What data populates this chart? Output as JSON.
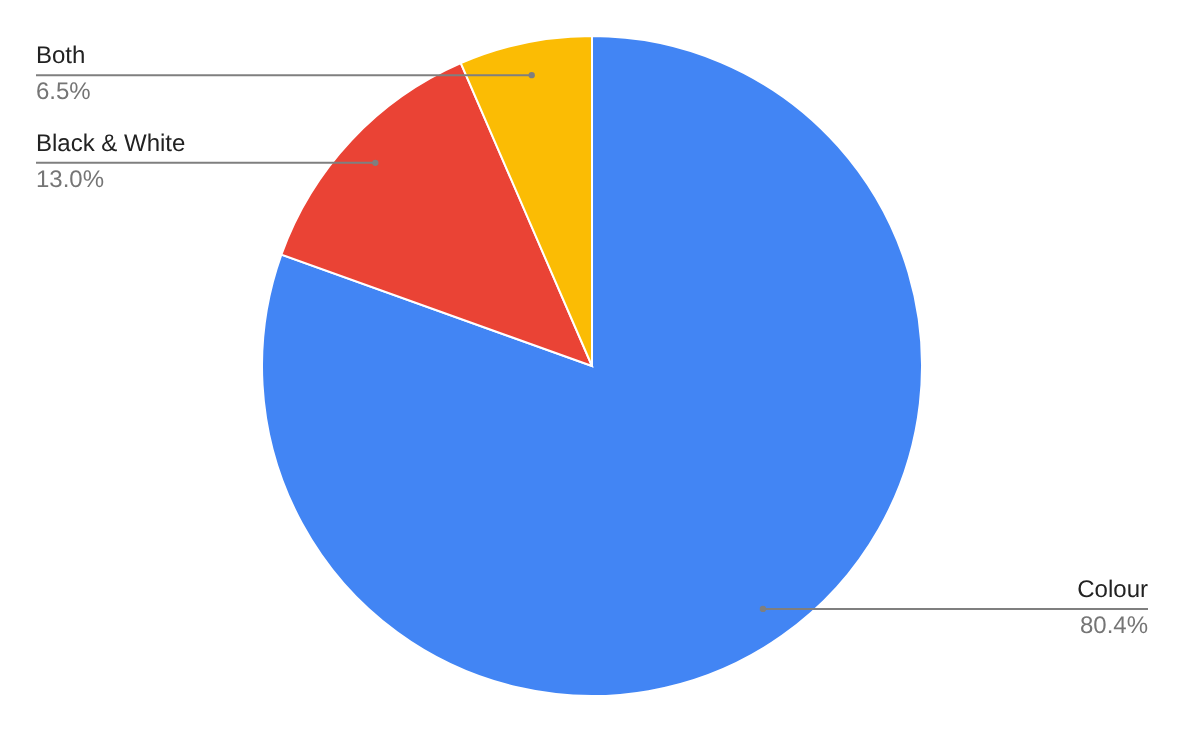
{
  "chart_data": {
    "type": "pie",
    "categories": [
      "Colour",
      "Black & White",
      "Both"
    ],
    "values": [
      80.4,
      13.0,
      6.5
    ],
    "colors": [
      "#4285f4",
      "#ea4335",
      "#fbbc04"
    ],
    "value_labels": [
      "80.4%",
      "13.0%",
      "6.5%"
    ]
  }
}
